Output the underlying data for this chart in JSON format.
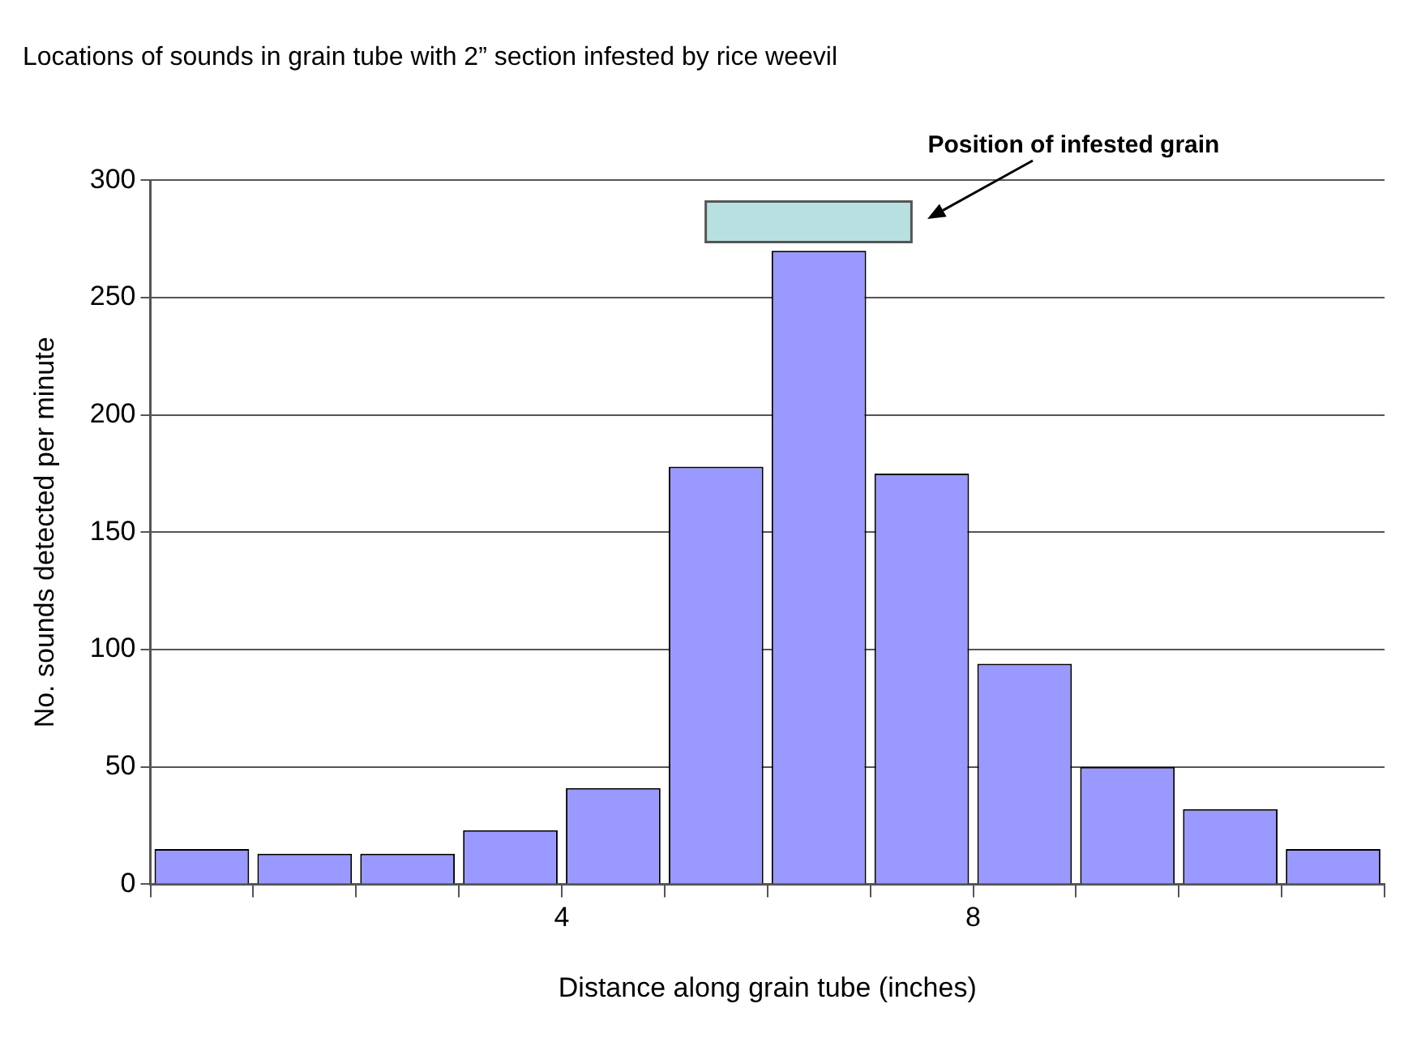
{
  "chart_data": {
    "type": "histogram",
    "title": "Locations of sounds in grain tube with 2” section infested by rice weevil",
    "xlabel": "Distance along grain tube (inches)",
    "ylabel": "No. sounds detected per minute",
    "bins": [
      0,
      1,
      2,
      3,
      4,
      5,
      6,
      7,
      8,
      9,
      10,
      11,
      12
    ],
    "values": [
      15,
      13,
      13,
      23,
      41,
      178,
      270,
      175,
      94,
      50,
      32,
      15
    ],
    "color": "#9999ff",
    "xlim": [
      0,
      12
    ],
    "xticks": [
      {
        "value": 0,
        "label": null
      },
      {
        "value": 1,
        "label": null
      },
      {
        "value": 2,
        "label": null
      },
      {
        "value": 3,
        "label": null
      },
      4,
      {
        "value": 5,
        "label": null
      },
      {
        "value": 6,
        "label": null
      },
      {
        "value": 7,
        "label": null
      },
      8,
      {
        "value": 9,
        "label": null
      },
      {
        "value": 10,
        "label": null
      },
      {
        "value": 11,
        "label": null
      },
      {
        "value": 12,
        "label": null
      }
    ],
    "ylim": [
      0,
      300
    ],
    "yticks": [
      0,
      50,
      100,
      150,
      200,
      250,
      300
    ],
    "grid": "y",
    "bands": [
      {
        "axis": "x",
        "from": 5.4,
        "to": 7.4,
        "label": "Position of infested grain",
        "color": "#b8e0e0"
      }
    ]
  }
}
